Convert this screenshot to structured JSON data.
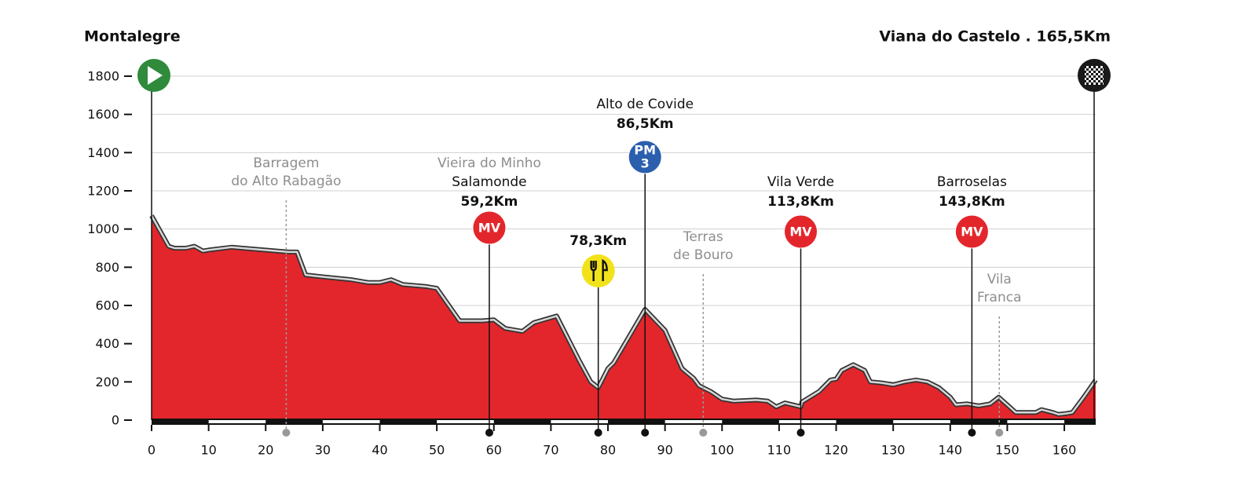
{
  "chart_data": {
    "type": "area",
    "start": "Montalegre",
    "finish": "Viana do Castelo . 165,5Km",
    "x": [
      0,
      3,
      4,
      6,
      7.5,
      9,
      10,
      14,
      16,
      24,
      25.5,
      27,
      30,
      35,
      38,
      40,
      42,
      44,
      48,
      50,
      54,
      58,
      60,
      62,
      65,
      67,
      71,
      75,
      77,
      78.3,
      80,
      81,
      86.5,
      90,
      93,
      95,
      96,
      98,
      100,
      102,
      106,
      108,
      109.5,
      111,
      113.8,
      114,
      117,
      119,
      120,
      121,
      123,
      125,
      126,
      128,
      130,
      132,
      134,
      136,
      138,
      140,
      141,
      143,
      145,
      147,
      148.5,
      150,
      151.5,
      155,
      156,
      158,
      159,
      160.4,
      161.4,
      163.4,
      165.5
    ],
    "series": [
      {
        "color": "#e3262b",
        "values": [
          1070,
          910,
          900,
          900,
          910,
          885,
          890,
          905,
          900,
          880,
          880,
          760,
          750,
          735,
          720,
          720,
          735,
          710,
          700,
          690,
          520,
          520,
          525,
          480,
          465,
          510,
          545,
          310,
          200,
          170,
          270,
          300,
          580,
          470,
          270,
          220,
          180,
          150,
          110,
          100,
          105,
          100,
          70,
          90,
          70,
          95,
          150,
          210,
          215,
          260,
          290,
          260,
          200,
          195,
          185,
          200,
          210,
          200,
          170,
          120,
          80,
          85,
          75,
          85,
          120,
          80,
          40,
          40,
          55,
          40,
          30,
          35,
          40,
          120,
          210
        ]
      }
    ],
    "xlim": [
      0,
      165.5
    ],
    "ylim": [
      0,
      1800
    ],
    "xticks": [
      0,
      10,
      20,
      30,
      40,
      50,
      60,
      70,
      80,
      90,
      100,
      110,
      120,
      130,
      140,
      150,
      160
    ],
    "yticks": [
      0,
      200,
      400,
      600,
      800,
      1000,
      1200,
      1400,
      1600,
      1800
    ],
    "grid": true,
    "annotations": [
      {
        "km": 23.6,
        "note": [
          "Barragem",
          "do Alto Rabagão"
        ]
      },
      {
        "km": 59.2,
        "note": [
          "Vieira do Minho"
        ],
        "name": "Salamonde",
        "km_label": "59,2Km",
        "badge": "MV"
      },
      {
        "km": 78.3,
        "km_label": "78,3Km",
        "icon": "feed"
      },
      {
        "km": 86.5,
        "name": "Alto de Covide",
        "km_label": "86,5Km",
        "badge": "PM",
        "badge_sub": "3"
      },
      {
        "km": 96.7,
        "note": [
          "Terras",
          "de Bouro"
        ]
      },
      {
        "km": 113.8,
        "name": "Vila Verde",
        "km_label": "113,8Km",
        "badge": "MV"
      },
      {
        "km": 143.8,
        "name": "Barroselas",
        "km_label": "143,8Km",
        "badge": "MV"
      },
      {
        "km": 148.6,
        "note": [
          "Vila",
          "Franca"
        ]
      }
    ]
  }
}
